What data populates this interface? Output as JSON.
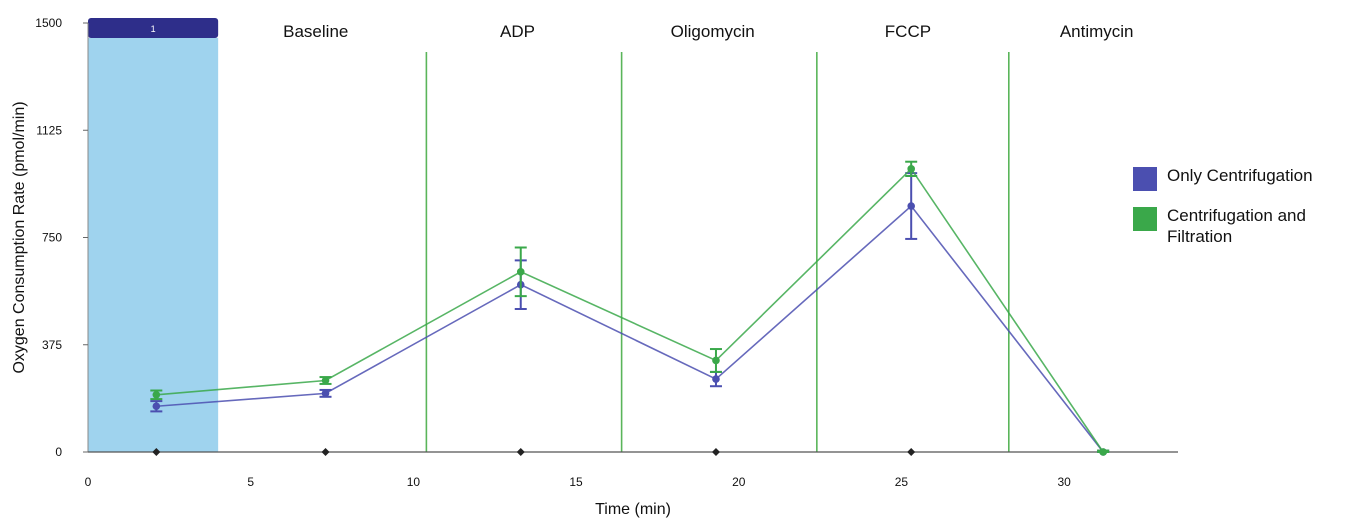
{
  "chart_data": {
    "type": "line",
    "xlabel": "Time (min)",
    "ylabel": "Oxygen Consumption Rate (pmol/min)",
    "xlim": [
      0,
      33.5
    ],
    "ylim": [
      0,
      1500
    ],
    "xticks": [
      0,
      5,
      10,
      15,
      20,
      25,
      30
    ],
    "yticks": [
      0,
      375,
      750,
      1125,
      1500
    ],
    "grid": false,
    "legend_position": "right",
    "highlight_region": {
      "x": [
        0,
        4
      ],
      "label": "1",
      "color": "#9fd3ee",
      "bar_color": "#2e2e8a"
    },
    "phases": [
      {
        "label": "Baseline",
        "x_center": 7.0
      },
      {
        "label": "ADP",
        "x_center": 13.2
      },
      {
        "label": "Oligomycin",
        "x_center": 19.2
      },
      {
        "label": "FCCP",
        "x_center": 25.2
      },
      {
        "label": "Antimycin",
        "x_center": 31.0
      }
    ],
    "injection_lines": [
      10.4,
      16.4,
      22.4,
      28.3
    ],
    "marker_x": [
      2.1,
      7.3,
      13.3,
      19.3,
      25.3
    ],
    "series": [
      {
        "name": "Only Centrifugation",
        "color": "#4b4fb0",
        "x": [
          2.1,
          7.3,
          13.3,
          19.3,
          25.3,
          31.2
        ],
        "y": [
          160,
          205,
          585,
          255,
          860,
          0
        ],
        "err": [
          18,
          12,
          85,
          25,
          115,
          5
        ]
      },
      {
        "name": "Centrifugation and Filtration",
        "color": "#3aa84a",
        "x": [
          2.1,
          7.3,
          13.3,
          19.3,
          25.3,
          31.2
        ],
        "y": [
          200,
          250,
          630,
          320,
          990,
          0
        ],
        "err": [
          15,
          12,
          85,
          40,
          25,
          5
        ]
      }
    ]
  },
  "legend": {
    "items": [
      {
        "label": "Only Centrifugation",
        "color": "#4b4fb0"
      },
      {
        "label": "Centrifugation and Filtration",
        "color": "#3aa84a"
      }
    ]
  }
}
